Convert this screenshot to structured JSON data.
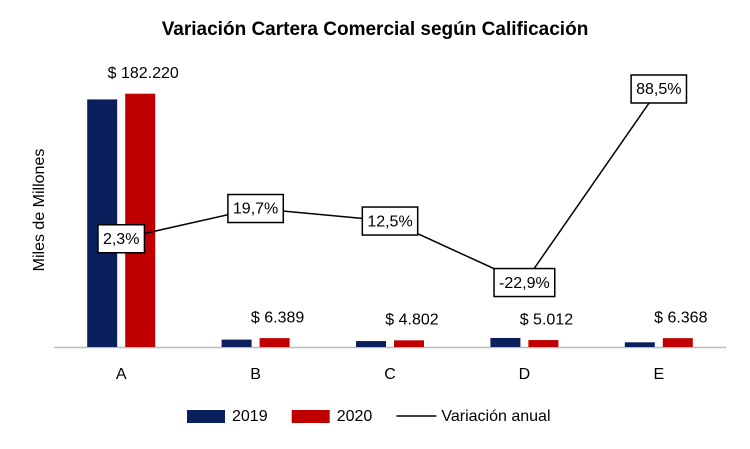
{
  "chart_data": {
    "type": "bar",
    "title": "Variación Cartera Comercial según Calificación",
    "y_label": "Miles de Millones",
    "categories": [
      "A",
      "B",
      "C",
      "D",
      "E"
    ],
    "ylim": [
      0,
      200000
    ],
    "y2lim": [
      -60,
      100
    ],
    "series": [
      {
        "name": "2019",
        "color": "#0a1f5c",
        "values": [
          178124,
          5337,
          4268,
          6501,
          3378
        ]
      },
      {
        "name": "2020",
        "color": "#c00000",
        "values": [
          182220,
          6389,
          4802,
          5012,
          6368
        ],
        "value_labels": [
          "$ 182.220",
          "$ 6.389",
          "$ 4.802",
          "$ 5.012",
          "$ 6.368"
        ]
      },
      {
        "name": "Variación anual",
        "type": "line",
        "axis": "y2",
        "color": "#000000",
        "values": [
          2.3,
          19.7,
          12.5,
          -22.9,
          88.5
        ],
        "value_labels": [
          "2,3%",
          "19,7%",
          "12,5%",
          "-22,9%",
          "88,5%"
        ]
      }
    ]
  }
}
